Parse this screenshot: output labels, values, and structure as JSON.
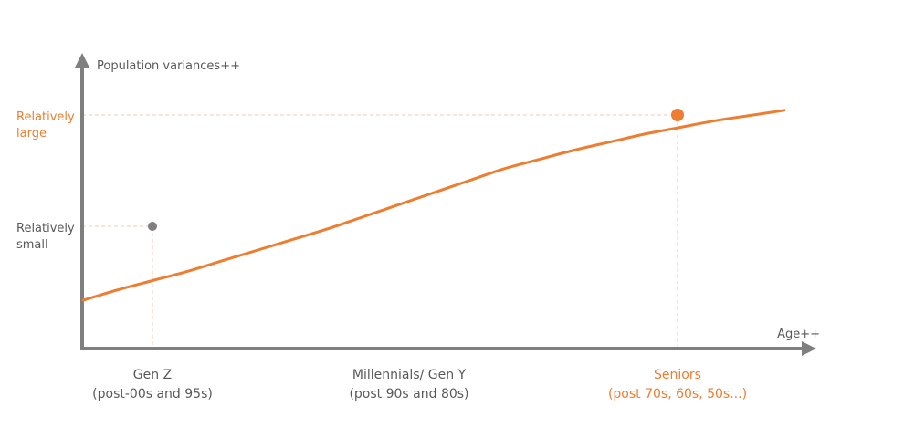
{
  "colors": {
    "accent": "#ed7d31",
    "axis": "#7f7f7f",
    "text": "#595959",
    "marker_gen_z": "#7f7f7f",
    "marker_seniors": "#ed7d31",
    "guide": "#f2c9b3"
  },
  "chart_data": {
    "type": "line",
    "title": "",
    "ylabel": "Population variances++",
    "xlabel": "Age++",
    "categories": [
      {
        "line1": "Gen Z",
        "line2": "(post-00s and 95s)",
        "highlight": false
      },
      {
        "line1": "Millennials/ Gen Y",
        "line2": "(post 90s and 80s)",
        "highlight": false
      },
      {
        "line1": "Seniors",
        "line2": "(post 70s, 60s, 50s...)",
        "highlight": true
      }
    ],
    "y_levels": [
      {
        "line1": "Relatively",
        "line2": "large",
        "highlight": true
      },
      {
        "line1": "Relatively",
        "line2": "small",
        "highlight": false
      }
    ],
    "markers": [
      {
        "category_index": 0,
        "level_index": 1,
        "color": "#7f7f7f"
      },
      {
        "category_index": 2,
        "level_index": 0,
        "color": "#ed7d31"
      }
    ],
    "series": [
      {
        "x": [
          0,
          0.5,
          1,
          1.5,
          2,
          2.5,
          3,
          3.5,
          4,
          4.5,
          5,
          5.5,
          6,
          6.5,
          7,
          7.5,
          8,
          8.5,
          9,
          9.5,
          10
        ],
        "y": [
          1.8,
          2.2,
          2.55,
          2.9,
          3.3,
          3.7,
          4.1,
          4.5,
          4.95,
          5.4,
          5.85,
          6.3,
          6.75,
          7.1,
          7.45,
          7.75,
          8.05,
          8.3,
          8.55,
          8.75,
          8.95
        ]
      }
    ],
    "xlim": [
      0,
      10
    ],
    "ylim": [
      0,
      10
    ],
    "grid": false,
    "legend": "none"
  }
}
